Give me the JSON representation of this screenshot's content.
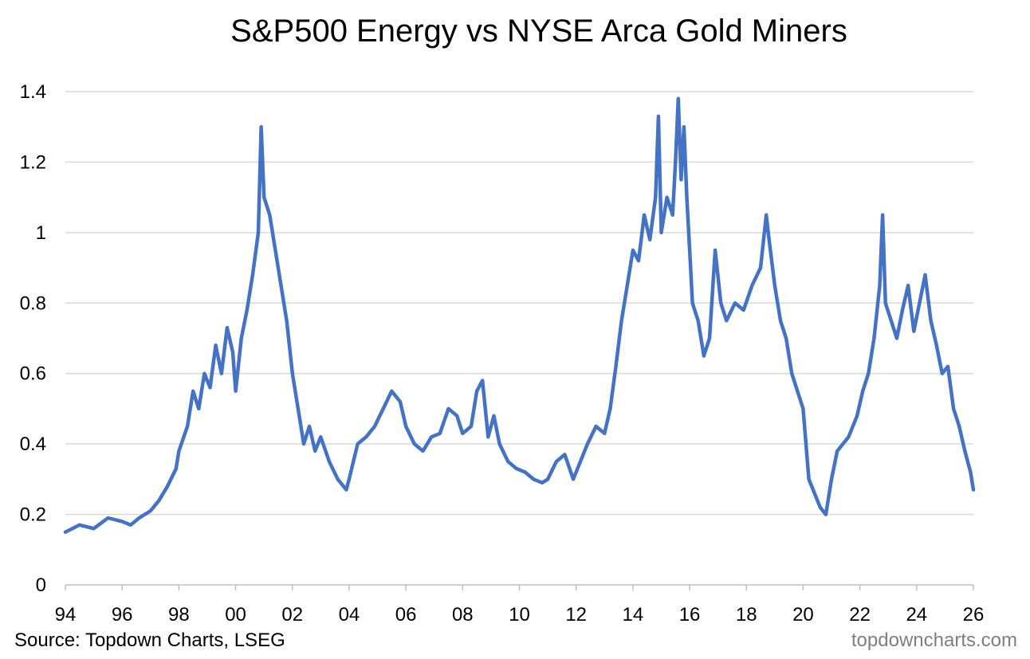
{
  "chart_data": {
    "type": "line",
    "title": "S&P500 Energy vs NYSE Arca Gold Miners",
    "xlabel": "",
    "ylabel": "",
    "xlim": [
      1994,
      2026
    ],
    "ylim": [
      0,
      1.4
    ],
    "x_tick_values": [
      1994,
      1996,
      1998,
      2000,
      2002,
      2004,
      2006,
      2008,
      2010,
      2012,
      2014,
      2016,
      2018,
      2020,
      2022,
      2024,
      2026
    ],
    "x_tick_labels": [
      "94",
      "96",
      "98",
      "00",
      "02",
      "04",
      "06",
      "08",
      "10",
      "12",
      "14",
      "16",
      "18",
      "20",
      "22",
      "24",
      "26"
    ],
    "y_tick_values": [
      0,
      0.2,
      0.4,
      0.6,
      0.8,
      1.0,
      1.2,
      1.4
    ],
    "y_tick_labels": [
      "0",
      "0.2",
      "0.4",
      "0.6",
      "0.8",
      "1",
      "1.2",
      "1.4"
    ],
    "gridlines": "horizontal",
    "line_color": "#4472c4",
    "series": [
      {
        "name": "S&P500 Energy / NYSE Arca Gold Miners",
        "x": [
          1994.0,
          1994.5,
          1995.0,
          1995.5,
          1996.0,
          1996.3,
          1996.6,
          1997.0,
          1997.3,
          1997.6,
          1997.9,
          1998.0,
          1998.3,
          1998.5,
          1998.7,
          1998.9,
          1999.1,
          1999.3,
          1999.5,
          1999.7,
          1999.9,
          2000.0,
          2000.2,
          2000.4,
          2000.6,
          2000.8,
          2000.9,
          2001.0,
          2001.2,
          2001.4,
          2001.6,
          2001.8,
          2002.0,
          2002.2,
          2002.4,
          2002.6,
          2002.8,
          2003.0,
          2003.3,
          2003.6,
          2003.9,
          2004.0,
          2004.3,
          2004.6,
          2004.9,
          2005.2,
          2005.5,
          2005.8,
          2006.0,
          2006.3,
          2006.6,
          2006.9,
          2007.2,
          2007.5,
          2007.8,
          2008.0,
          2008.3,
          2008.5,
          2008.7,
          2008.9,
          2009.1,
          2009.3,
          2009.6,
          2009.9,
          2010.2,
          2010.5,
          2010.8,
          2011.0,
          2011.3,
          2011.6,
          2011.9,
          2012.1,
          2012.4,
          2012.7,
          2013.0,
          2013.2,
          2013.4,
          2013.6,
          2013.8,
          2014.0,
          2014.2,
          2014.4,
          2014.6,
          2014.8,
          2014.9,
          2015.0,
          2015.2,
          2015.4,
          2015.5,
          2015.6,
          2015.7,
          2015.8,
          2015.9,
          2016.0,
          2016.1,
          2016.3,
          2016.5,
          2016.7,
          2016.9,
          2017.1,
          2017.3,
          2017.6,
          2017.9,
          2018.2,
          2018.5,
          2018.7,
          2018.8,
          2019.0,
          2019.2,
          2019.4,
          2019.6,
          2019.8,
          2020.0,
          2020.2,
          2020.4,
          2020.6,
          2020.8,
          2021.0,
          2021.2,
          2021.4,
          2021.6,
          2021.9,
          2022.1,
          2022.3,
          2022.5,
          2022.7,
          2022.8,
          2022.9,
          2023.1,
          2023.3,
          2023.5,
          2023.7,
          2023.9,
          2024.1,
          2024.3,
          2024.5,
          2024.7,
          2024.9,
          2025.1,
          2025.3,
          2025.5,
          2025.7,
          2025.9,
          2026.0
        ],
        "values": [
          0.15,
          0.17,
          0.16,
          0.19,
          0.18,
          0.17,
          0.19,
          0.21,
          0.24,
          0.28,
          0.33,
          0.38,
          0.45,
          0.55,
          0.5,
          0.6,
          0.56,
          0.68,
          0.6,
          0.73,
          0.66,
          0.55,
          0.7,
          0.78,
          0.88,
          1.0,
          1.3,
          1.1,
          1.05,
          0.95,
          0.85,
          0.75,
          0.6,
          0.5,
          0.4,
          0.45,
          0.38,
          0.42,
          0.35,
          0.3,
          0.27,
          0.3,
          0.4,
          0.42,
          0.45,
          0.5,
          0.55,
          0.52,
          0.45,
          0.4,
          0.38,
          0.42,
          0.43,
          0.5,
          0.48,
          0.43,
          0.45,
          0.55,
          0.58,
          0.42,
          0.48,
          0.4,
          0.35,
          0.33,
          0.32,
          0.3,
          0.29,
          0.3,
          0.35,
          0.37,
          0.3,
          0.34,
          0.4,
          0.45,
          0.43,
          0.5,
          0.62,
          0.75,
          0.85,
          0.95,
          0.92,
          1.05,
          0.98,
          1.1,
          1.33,
          1.0,
          1.1,
          1.05,
          1.2,
          1.38,
          1.15,
          1.3,
          1.1,
          0.95,
          0.8,
          0.75,
          0.65,
          0.7,
          0.95,
          0.8,
          0.75,
          0.8,
          0.78,
          0.85,
          0.9,
          1.05,
          0.98,
          0.85,
          0.75,
          0.7,
          0.6,
          0.55,
          0.5,
          0.3,
          0.26,
          0.22,
          0.2,
          0.3,
          0.38,
          0.4,
          0.42,
          0.48,
          0.55,
          0.6,
          0.7,
          0.85,
          1.05,
          0.8,
          0.75,
          0.7,
          0.78,
          0.85,
          0.72,
          0.8,
          0.88,
          0.75,
          0.68,
          0.6,
          0.62,
          0.5,
          0.45,
          0.38,
          0.32,
          0.27
        ]
      }
    ]
  },
  "footer": {
    "source": "Source: Topdown Charts, LSEG",
    "brand": "topdowncharts.com"
  }
}
